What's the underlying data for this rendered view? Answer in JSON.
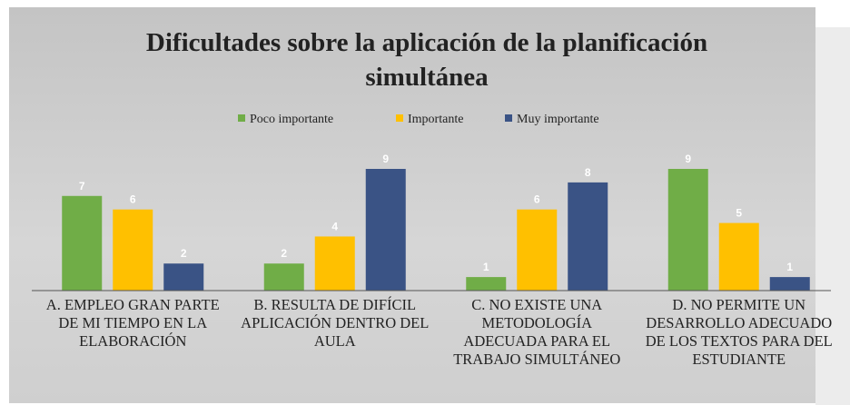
{
  "chart_data": {
    "type": "bar",
    "title": "Dificultades  sobre la aplicación  de la planificación  simultánea",
    "categories": [
      "A. EMPLEO GRAN PARTE DE MI TIEMPO EN LA ELABORACIÓN",
      "B. RESULTA DE DIFÍCIL APLICACIÓN DENTRO DEL AULA",
      "C. NO EXISTE UNA METODOLOGÍA ADECUADA PARA EL TRABAJO SIMULTÁNEO",
      "D. NO PERMITE UN DESARROLLO ADECUADO DE LOS TEXTOS PARA DEL ESTUDIANTE"
    ],
    "series": [
      {
        "name": "Poco importante",
        "color": "#70ad47",
        "values": [
          7,
          2,
          1,
          9
        ]
      },
      {
        "name": "Importante",
        "color": "#ffc000",
        "values": [
          6,
          4,
          6,
          5
        ]
      },
      {
        "name": "Muy importante",
        "color": "#3a5385",
        "values": [
          2,
          9,
          8,
          1
        ]
      }
    ],
    "ylim": [
      0,
      9
    ],
    "legend": "top"
  }
}
